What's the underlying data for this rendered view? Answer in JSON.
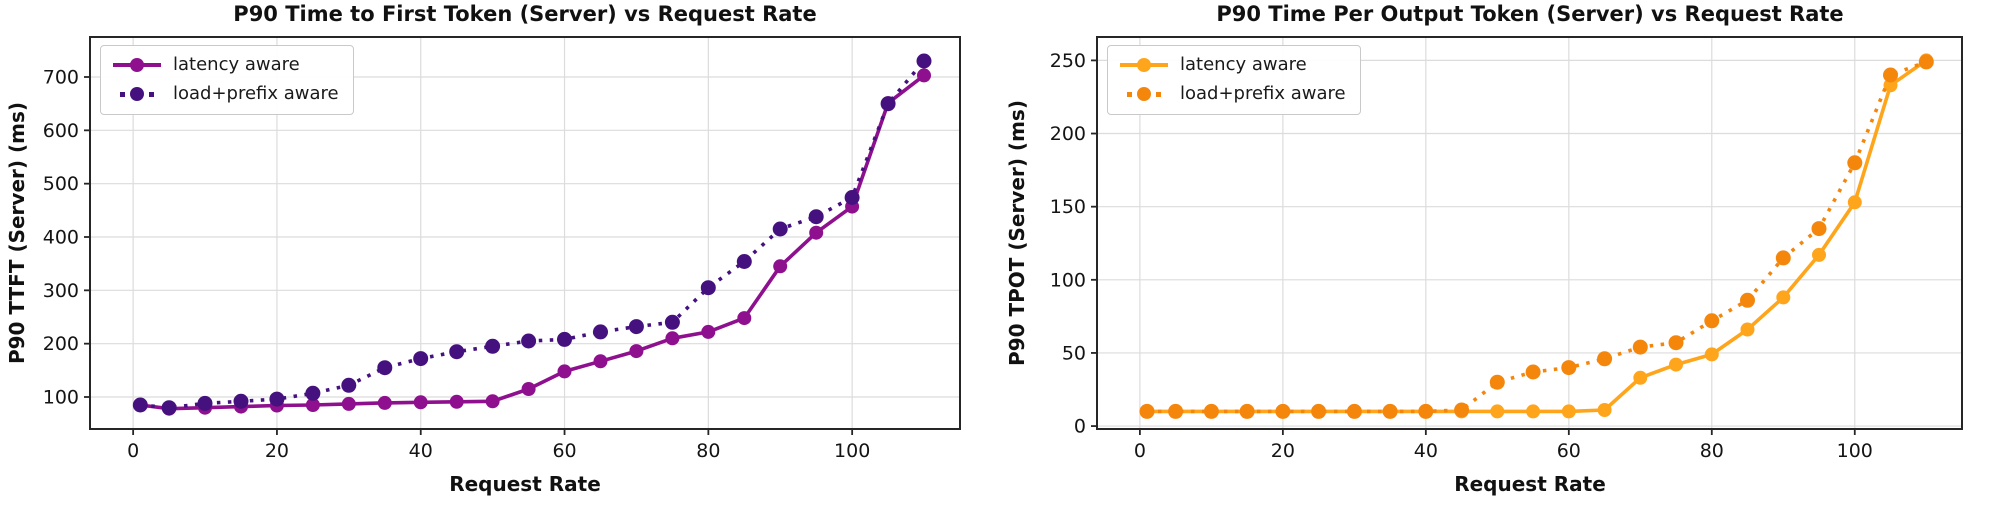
{
  "chart_data": [
    {
      "type": "line",
      "title": "P90 Time to First Token (Server) vs Request Rate",
      "xlabel": "Request Rate",
      "ylabel": "P90 TTFT (Server) (ms)",
      "grid": true,
      "legend_position": "upper left",
      "xlim": [
        -6,
        115
      ],
      "ylim": [
        40,
        775
      ],
      "xticks": [
        0,
        20,
        40,
        60,
        80,
        100
      ],
      "yticks": [
        100,
        200,
        300,
        400,
        500,
        600,
        700
      ],
      "x": [
        1,
        5,
        10,
        15,
        20,
        25,
        30,
        35,
        40,
        45,
        50,
        55,
        60,
        65,
        70,
        75,
        80,
        85,
        90,
        95,
        100,
        105,
        110
      ],
      "series": [
        {
          "name": "latency aware",
          "linestyle": "solid",
          "color": "#8E108E",
          "values": [
            85,
            78,
            80,
            82,
            84,
            85,
            87,
            89,
            90,
            91,
            92,
            115,
            148,
            167,
            186,
            210,
            222,
            248,
            345,
            408,
            457,
            651,
            703
          ]
        },
        {
          "name": "load+prefix aware",
          "linestyle": "dotted",
          "color": "#45117E",
          "values": [
            85,
            80,
            88,
            92,
            96,
            107,
            122,
            155,
            172,
            185,
            195,
            205,
            208,
            222,
            232,
            240,
            305,
            354,
            415,
            438,
            474,
            650,
            730
          ]
        }
      ]
    },
    {
      "type": "line",
      "title": "P90 Time Per Output Token (Server) vs Request Rate",
      "xlabel": "Request Rate",
      "ylabel": "P90 TPOT (Server) (ms)",
      "grid": true,
      "legend_position": "upper left",
      "xlim": [
        -6,
        115
      ],
      "ylim": [
        -2,
        266
      ],
      "xticks": [
        0,
        20,
        40,
        60,
        80,
        100
      ],
      "yticks": [
        0,
        50,
        100,
        150,
        200,
        250
      ],
      "x": [
        1,
        5,
        10,
        15,
        20,
        25,
        30,
        35,
        40,
        45,
        50,
        55,
        60,
        65,
        70,
        75,
        80,
        85,
        90,
        95,
        100,
        105,
        110
      ],
      "series": [
        {
          "name": "latency aware",
          "linestyle": "solid",
          "color": "#FFA51B",
          "values": [
            10,
            10,
            10,
            10,
            10,
            10,
            10,
            10,
            10,
            10,
            10,
            10,
            10,
            11,
            33,
            42,
            49,
            66,
            88,
            117,
            153,
            233,
            250
          ]
        },
        {
          "name": "load+prefix aware",
          "linestyle": "dotted",
          "color": "#F5860C",
          "values": [
            10,
            10,
            10,
            10,
            10,
            10,
            10,
            10,
            10,
            11,
            30,
            37,
            40,
            46,
            54,
            57,
            72,
            86,
            115,
            135,
            180,
            240,
            249
          ]
        }
      ]
    }
  ],
  "style": {
    "grid_color": "#dcdcdc",
    "spine_color": "#262626",
    "tick_label_color": "#141414"
  }
}
